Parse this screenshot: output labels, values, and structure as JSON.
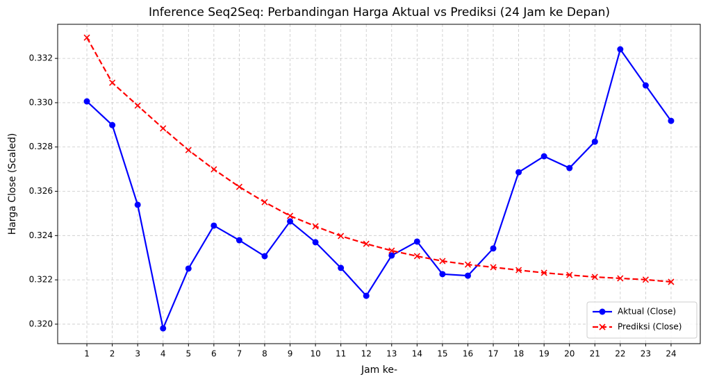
{
  "chart_data": {
    "type": "line",
    "title": "Inference Seq2Seq: Perbandingan Harga Aktual vs Prediksi (24 Jam ke Depan)",
    "xlabel": "Jam ke-",
    "ylabel": "Harga Close (Scaled)",
    "x": [
      1,
      2,
      3,
      4,
      5,
      6,
      7,
      8,
      9,
      10,
      11,
      12,
      13,
      14,
      15,
      16,
      17,
      18,
      19,
      20,
      21,
      22,
      23,
      24
    ],
    "series": [
      {
        "name": "Aktual (Close)",
        "color": "#0000ff",
        "marker": "o",
        "linestyle": "solid",
        "values": [
          0.33006,
          0.32899,
          0.32539,
          0.31981,
          0.32251,
          0.32445,
          0.32379,
          0.32307,
          0.32464,
          0.3237,
          0.32254,
          0.32128,
          0.3231,
          0.32373,
          0.32226,
          0.32219,
          0.32342,
          0.32686,
          0.32758,
          0.32705,
          0.32824,
          0.33241,
          0.33078,
          0.32918
        ]
      },
      {
        "name": "Prediksi (Close)",
        "color": "#ff0000",
        "marker": "x",
        "linestyle": "dashed",
        "values": [
          0.33294,
          0.3309,
          0.32987,
          0.32884,
          0.32786,
          0.32699,
          0.3262,
          0.32551,
          0.32489,
          0.32442,
          0.32398,
          0.32363,
          0.32332,
          0.32307,
          0.32285,
          0.32269,
          0.32257,
          0.32244,
          0.32232,
          0.32222,
          0.32213,
          0.32207,
          0.32201,
          0.32191
        ]
      }
    ],
    "xlim": [
      -0.15,
      25.15
    ],
    "ylim": [
      0.31912,
      0.33354
    ],
    "xticks": [
      1,
      2,
      3,
      4,
      5,
      6,
      7,
      8,
      9,
      10,
      11,
      12,
      13,
      14,
      15,
      16,
      17,
      18,
      19,
      20,
      21,
      22,
      23,
      24
    ],
    "yticks": [
      {
        "value": 0.32,
        "label": "0.320"
      },
      0.322,
      0.324,
      0.326,
      0.328,
      {
        "value": 0.33,
        "label": "0.330"
      },
      0.332
    ],
    "grid": true,
    "legend": "lower right"
  }
}
